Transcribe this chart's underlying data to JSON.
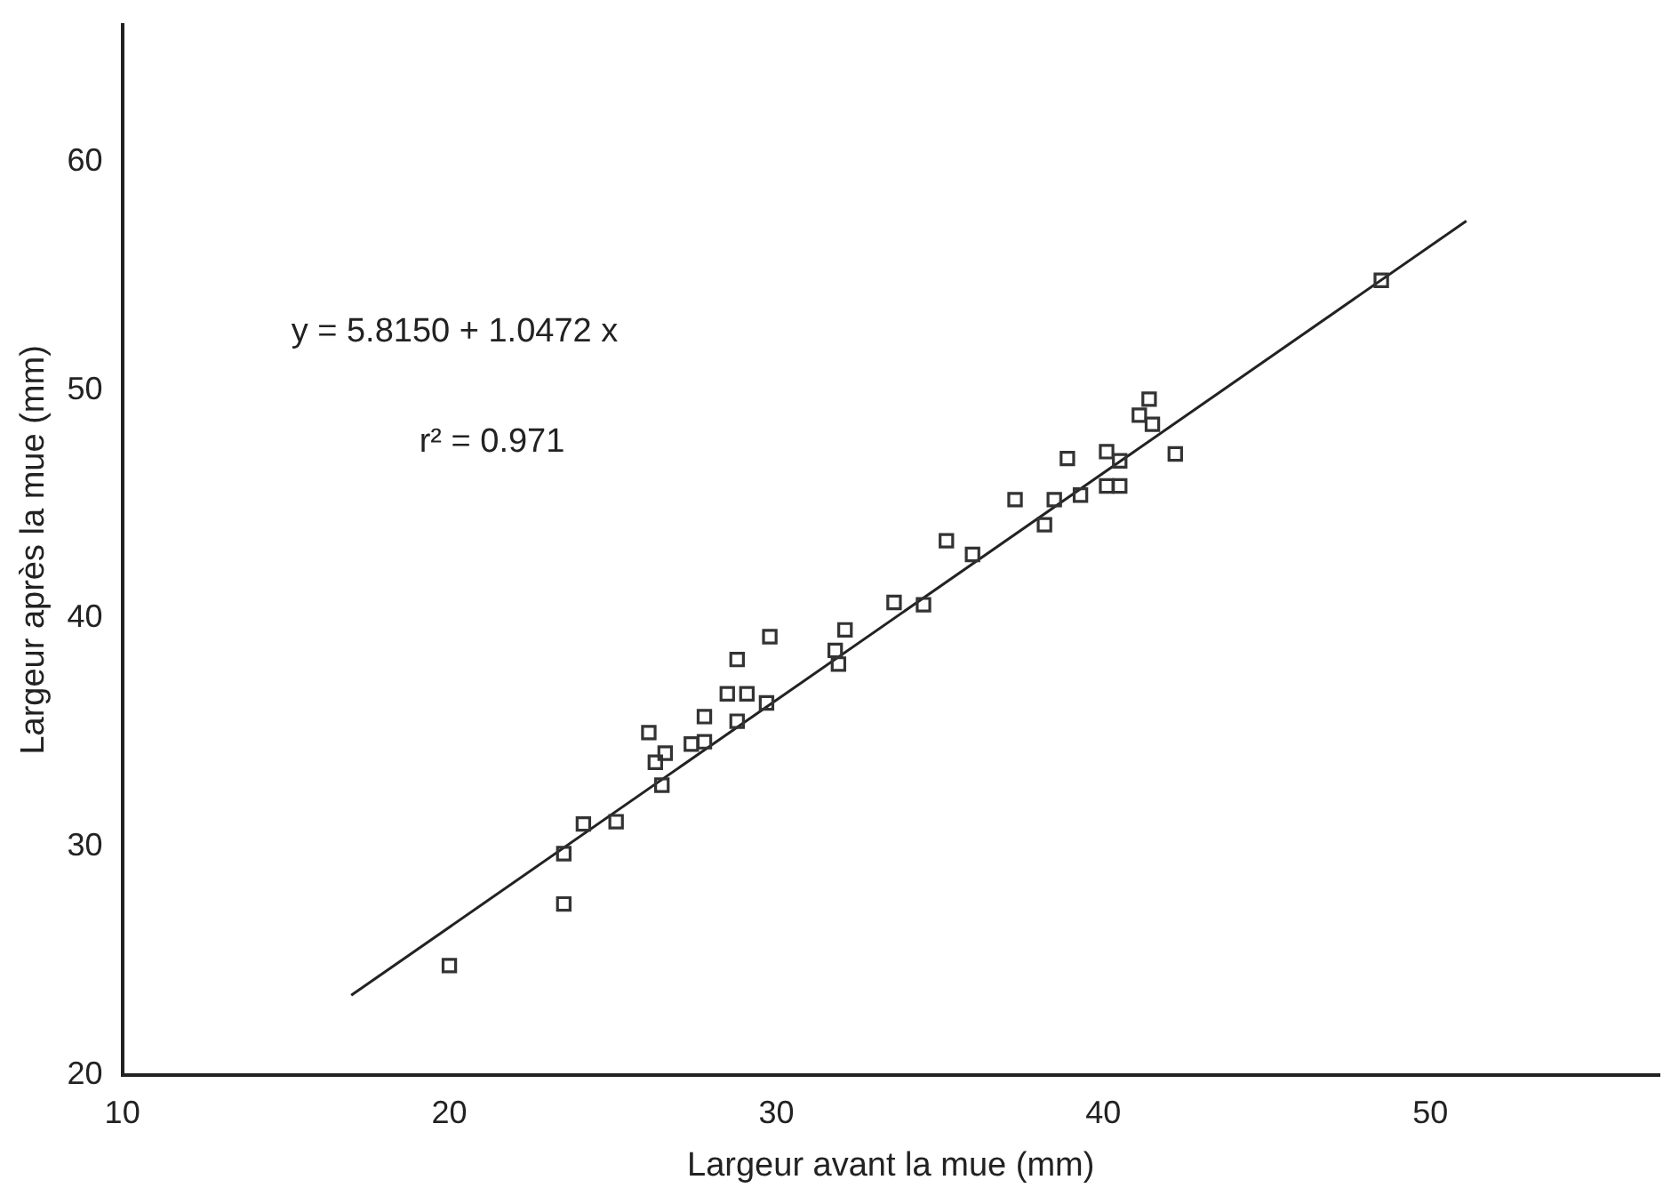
{
  "chart_data": {
    "type": "scatter",
    "xlabel": "Largeur avant la mue (mm)",
    "ylabel": "Largeur après la mue (mm)",
    "annotations": [
      "y = 5.8150 + 1.0472 x",
      "r² = 0.971"
    ],
    "xlim": [
      10,
      57
    ],
    "ylim": [
      20,
      66
    ],
    "xticks": [
      10,
      20,
      30,
      40,
      50
    ],
    "yticks": [
      20,
      30,
      40,
      50,
      60
    ],
    "grid": false,
    "legend": false,
    "marker": "square",
    "series": [
      {
        "type": "scatter",
        "color": "#333333",
        "x": [
          20,
          23.5,
          23.5,
          24.1,
          25.1,
          26.1,
          26.3,
          26.5,
          26.6,
          27.4,
          27.8,
          27.8,
          28.5,
          28.8,
          28.8,
          29.1,
          29.7,
          29.8,
          31.8,
          31.9,
          32.1,
          33.6,
          34.5,
          35.2,
          36,
          37.3,
          38.2,
          38.5,
          38.9,
          39.3,
          40.1,
          40.1,
          40.5,
          40.5,
          41.1,
          41.4,
          41.5,
          42.2,
          48.5
        ],
        "values": [
          24.8,
          29.7,
          27.5,
          31,
          31.1,
          35,
          33.7,
          32.7,
          34.1,
          34.5,
          34.6,
          35.7,
          36.7,
          35.5,
          38.2,
          36.7,
          36.3,
          39.2,
          38.6,
          38,
          39.5,
          40.7,
          40.6,
          43.4,
          42.8,
          45.2,
          44.1,
          45.2,
          47,
          45.4,
          47.3,
          45.8,
          45.8,
          46.9,
          48.9,
          49.6,
          48.5,
          47.2,
          54.8
        ]
      },
      {
        "type": "line",
        "color": "#222222",
        "marker": "none",
        "line_style": "solid",
        "x": [
          17,
          51.1
        ],
        "values": [
          23.5,
          57.4
        ]
      }
    ]
  }
}
